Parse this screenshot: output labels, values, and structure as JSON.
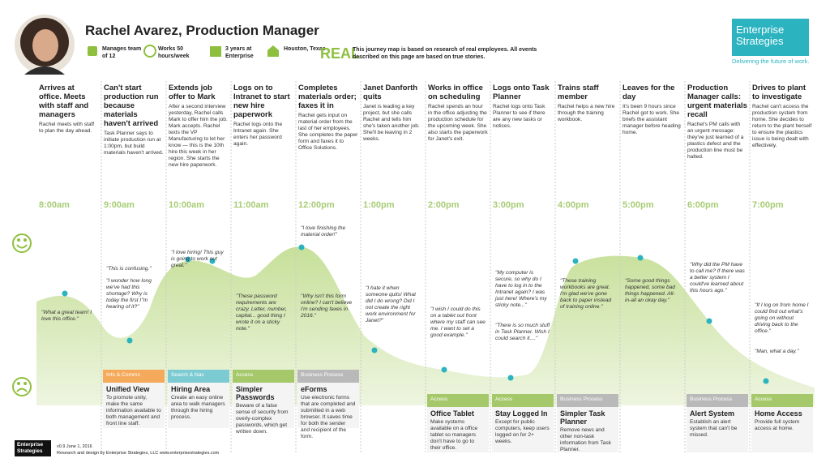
{
  "header": {
    "title": "Rachel Avarez, Production Manager",
    "stats": [
      "Manages team of 12",
      "Works 50 hours/week",
      "3 years at Enterprise",
      "Houston, Texas"
    ],
    "real": "REAL",
    "real_note": "This journey map is based on research of real employees. All events described on this page are based on true stories.",
    "logo": "Enterprise Strategies",
    "tagline": "Delivering the future of work."
  },
  "columns": [
    {
      "title": "Arrives at office. Meets with staff and managers",
      "text": "Rachel meets with staff to plan the day ahead.",
      "time": "8:00am",
      "quotes": [
        "\"What a great team! I love this office.\""
      ]
    },
    {
      "title": "Can't start production run because materials haven't arrived",
      "text": "Task Planner says to initiate production run at 1:00pm, but build materials haven't arrived.",
      "time": "9:00am",
      "quotes": [
        "\"This is confusing.\"",
        "\"I wonder how long we've had this shortage? Why is today the first I\"m hearing of it?\""
      ],
      "card": {
        "category": "Info & Comms",
        "title": "Unified View",
        "text": "To promote unity, make the same information available to both management and front line staff.",
        "color": "#f5a95a"
      }
    },
    {
      "title": "Extends job offer to Mark",
      "text": "After a second interview yesterday, Rachel calls Mark to offer him the job. Mark accepts. Rachel texts the VP Manufacturing to let her know — this is the 10th hire this week in her region. She starts the new hire paperwork.",
      "time": "10:00am",
      "quotes": [
        "\"I love hiring! This guy is going to work out great.\""
      ],
      "card": {
        "category": "Search & Nav",
        "title": "Hiring Area",
        "text": "Create an easy online area to walk managers through the hiring process.",
        "color": "#7ccbd3"
      }
    },
    {
      "title": "Logs on to Intranet to start new hire paperwork",
      "text": "Rachel logs onto the Intranet again. She enters her password again.",
      "time": "11:00am",
      "quotes": [
        "\"These password requirements are crazy. Letter, number, capital... good thing I wrote it on a sticky note.\""
      ],
      "card": {
        "category": "Access",
        "title": "Simpler Passwords",
        "text": "Beware of a false sense of security from overly-complex passwords, which get written down.",
        "color": "#a5c86a"
      }
    },
    {
      "title": "Completes materials order; faxes it in",
      "text": "Rachel gets input on material order from the last of her employees. She completes the paper form and faxes it to Office Solutions.",
      "time": "12:00pm",
      "quotes": [
        "\"I love finishing the material order!\"",
        "\"Why isn't this form online? I can't believe I'm sending faxes in 2016.\""
      ],
      "card": {
        "category": "Business Process",
        "title": "eForms",
        "text": "Use electronic forms that are completed and submitted in a web browser. It saves time for both the sender and recipient of the form.",
        "color": "#b9b9b9"
      }
    },
    {
      "title": "Janet Danforth quits",
      "text": "Janet is leading a key project, but she calls Rachel and tells him she's taken another job. She'll be leaving in 2 weeks.",
      "time": "1:00pm",
      "quotes": [
        "\"I hate it when someone quits! What did I do wrong? Did I not create the right work environment for Janet?\""
      ]
    },
    {
      "title": "Works in office on scheduling",
      "text": "Rachel spends an hour in the office adjusting the production schedule for the upcoming week. She also starts the paperwork for Janet's exit.",
      "time": "2:00pm",
      "quotes": [
        "\"I wish I could do this on a tablet out front where my staff can see me. I want to set a good example.\""
      ],
      "card": {
        "category": "Access",
        "title": "Office Tablet",
        "text": "Make systems available on a office tablet so managers don't have to go to their office.",
        "color": "#a5c86a"
      }
    },
    {
      "title": "Logs onto Task Planner",
      "text": "Rachel logs onto Task Planner to see if there are any new tasks or notices.",
      "time": "3:00pm",
      "quotes": [
        "\"My computer is secure, so why do I have to log in to the Intranet again? I was just here! Where's my sticky note...\"",
        "\"There is so much stuff in Task Planner. Wish I could search it....\""
      ],
      "card": {
        "category": "Access",
        "title": "Stay Logged In",
        "text": "Except for public computers, keep users logged on for 2+ weeks.",
        "color": "#a5c86a"
      }
    },
    {
      "title": "Trains staff member",
      "text": "Rachel helps a new hire through the training workbook.",
      "time": "4:00pm",
      "quotes": [
        "\"These training workbooks are great. I'm glad we've gone back to paper instead of training online.\""
      ],
      "card": {
        "category": "Business Process",
        "title": "Simpler Task Planner",
        "text": "Remove news and other non-task information from Task Planner.",
        "color": "#b9b9b9"
      }
    },
    {
      "title": "Leaves for the day",
      "text": "It's been 9 hours since Rachel got to work. She briefs the assistant manager before heading home.",
      "time": "5:00pm",
      "quotes": [
        "\"Some good things happened, some bad things happened. All-in-all an okay day.\""
      ]
    },
    {
      "title": "Production Manager calls: urgent materials recall",
      "text": "Rachel's PM calls with an urgent message: they've just learned of a plastics defect and the production line must be halted.",
      "time": "6:00pm",
      "quotes": [
        "\"Why did the PM have to call me? If there was a better system I could've learned about this hours ago.\""
      ],
      "card": {
        "category": "Business Process",
        "title": "Alert System",
        "text": "Establish an alert system that can't be missed.",
        "color": "#b9b9b9"
      }
    },
    {
      "title": "Drives to plant to investigate",
      "text": "Rachel can't access the production system from home. She decides to return to the plant herself to ensure the plastics issue is being dealt with effectively.",
      "time": "7:00pm",
      "quotes": [
        "\"If I log on from home I could find out what's going on without driving back to the office.\"",
        "\"Man, what a day.\""
      ],
      "card": {
        "category": "Access",
        "title": "Home Access",
        "text": "Provide full system access at home.",
        "color": "#a5c86a"
      }
    }
  ],
  "footer": {
    "logo": "Enterprise Strategies",
    "version": "v0.9 June 1, 2016",
    "credit": "Research and design by Enterprise Strategies, LLC  www.enterprisestrategies.com"
  }
}
